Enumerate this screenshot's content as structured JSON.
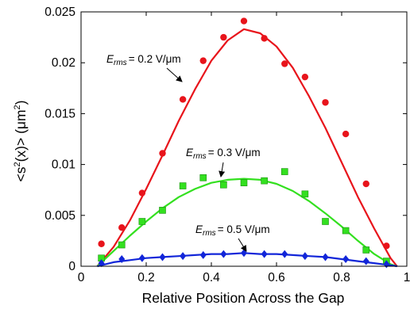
{
  "chart_data": {
    "type": "scatter",
    "xlabel": "Relative Position Across the Gap",
    "ylabel_parts": {
      "pre": "<s",
      "sup1": "2",
      "mid": "(x)> (μm",
      "sup2": "2",
      "post": ")"
    },
    "xlim": [
      0,
      1
    ],
    "ylim": [
      0,
      0.025
    ],
    "xticks": [
      0,
      0.2,
      0.4,
      0.6,
      0.8,
      1
    ],
    "xtick_labels": [
      "0",
      "0.2",
      "0.4",
      "0.6",
      "0.8",
      "1"
    ],
    "yticks": [
      0,
      0.005,
      0.01,
      0.015,
      0.02,
      0.025
    ],
    "ytick_labels": [
      "0",
      "0.005",
      "0.01",
      "0.015",
      "0.02",
      "0.025"
    ],
    "grid": false,
    "legend": "none",
    "series": [
      {
        "annotation": {
          "E": "E",
          "sub": "rms",
          "value": "= 0.2 V/μm"
        },
        "marker": "circle",
        "color": "#e8141b",
        "points": [
          [
            0.0625,
            0.0022
          ],
          [
            0.125,
            0.0038
          ],
          [
            0.1875,
            0.0072
          ],
          [
            0.25,
            0.0111
          ],
          [
            0.3125,
            0.0164
          ],
          [
            0.375,
            0.0202
          ],
          [
            0.4375,
            0.0225
          ],
          [
            0.5,
            0.0241
          ],
          [
            0.5625,
            0.0224
          ],
          [
            0.625,
            0.0199
          ],
          [
            0.6875,
            0.0186
          ],
          [
            0.75,
            0.0161
          ],
          [
            0.8125,
            0.013
          ],
          [
            0.875,
            0.0081
          ],
          [
            0.9375,
            0.002
          ]
        ],
        "fit": [
          [
            0.05,
            0.0
          ],
          [
            0.1,
            0.0019
          ],
          [
            0.15,
            0.0045
          ],
          [
            0.2,
            0.0076
          ],
          [
            0.25,
            0.0109
          ],
          [
            0.3,
            0.0143
          ],
          [
            0.35,
            0.0174
          ],
          [
            0.4,
            0.0202
          ],
          [
            0.45,
            0.0222
          ],
          [
            0.5,
            0.0233
          ],
          [
            0.55,
            0.0229
          ],
          [
            0.6,
            0.0216
          ],
          [
            0.65,
            0.0195
          ],
          [
            0.7,
            0.0167
          ],
          [
            0.75,
            0.0136
          ],
          [
            0.8,
            0.0102
          ],
          [
            0.85,
            0.0068
          ],
          [
            0.9,
            0.0037
          ],
          [
            0.95,
            0.0008
          ],
          [
            0.97,
            0.0
          ]
        ]
      },
      {
        "annotation": {
          "E": "E",
          "sub": "rms",
          "value": "= 0.3 V/μm"
        },
        "marker": "square",
        "color": "#33e01f",
        "points": [
          [
            0.0625,
            0.0008
          ],
          [
            0.125,
            0.0021
          ],
          [
            0.1875,
            0.0044
          ],
          [
            0.25,
            0.0055
          ],
          [
            0.3125,
            0.0079
          ],
          [
            0.375,
            0.0087
          ],
          [
            0.4375,
            0.008
          ],
          [
            0.5,
            0.0082
          ],
          [
            0.5625,
            0.0084
          ],
          [
            0.625,
            0.0093
          ],
          [
            0.6875,
            0.0071
          ],
          [
            0.75,
            0.0044
          ],
          [
            0.8125,
            0.0035
          ],
          [
            0.875,
            0.0016
          ],
          [
            0.9375,
            0.0005
          ]
        ],
        "fit": [
          [
            0.05,
            0.0
          ],
          [
            0.1,
            0.0015
          ],
          [
            0.15,
            0.003
          ],
          [
            0.2,
            0.0044
          ],
          [
            0.25,
            0.0057
          ],
          [
            0.3,
            0.0068
          ],
          [
            0.35,
            0.0076
          ],
          [
            0.4,
            0.0082
          ],
          [
            0.45,
            0.0085
          ],
          [
            0.5,
            0.0086
          ],
          [
            0.55,
            0.0085
          ],
          [
            0.6,
            0.0081
          ],
          [
            0.65,
            0.0074
          ],
          [
            0.7,
            0.0064
          ],
          [
            0.75,
            0.0052
          ],
          [
            0.8,
            0.0039
          ],
          [
            0.85,
            0.0025
          ],
          [
            0.9,
            0.0012
          ],
          [
            0.95,
            0.0002
          ],
          [
            0.97,
            0.0
          ]
        ]
      },
      {
        "annotation": {
          "E": "E",
          "sub": "rms",
          "value": "= 0.5 V/μm"
        },
        "marker": "diamond",
        "color": "#1226d9",
        "points": [
          [
            0.0625,
            0.0003
          ],
          [
            0.125,
            0.0007
          ],
          [
            0.1875,
            0.0008
          ],
          [
            0.25,
            0.0009
          ],
          [
            0.3125,
            0.001
          ],
          [
            0.375,
            0.0011
          ],
          [
            0.4375,
            0.0012
          ],
          [
            0.5,
            0.0013
          ],
          [
            0.5625,
            0.0012
          ],
          [
            0.625,
            0.0012
          ],
          [
            0.6875,
            0.001
          ],
          [
            0.75,
            0.0009
          ],
          [
            0.8125,
            0.0007
          ],
          [
            0.875,
            0.0005
          ],
          [
            0.9375,
            0.0002
          ]
        ],
        "fit": [
          [
            0.05,
            0.0
          ],
          [
            0.1,
            0.0004
          ],
          [
            0.15,
            0.0006
          ],
          [
            0.2,
            0.0008
          ],
          [
            0.25,
            0.0009
          ],
          [
            0.3,
            0.001
          ],
          [
            0.35,
            0.0011
          ],
          [
            0.4,
            0.0012
          ],
          [
            0.45,
            0.0012
          ],
          [
            0.5,
            0.0013
          ],
          [
            0.55,
            0.0012
          ],
          [
            0.6,
            0.0012
          ],
          [
            0.65,
            0.0011
          ],
          [
            0.7,
            0.001
          ],
          [
            0.75,
            0.0009
          ],
          [
            0.8,
            0.0007
          ],
          [
            0.85,
            0.0005
          ],
          [
            0.9,
            0.0003
          ],
          [
            0.95,
            0.0001
          ],
          [
            0.97,
            0.0
          ]
        ]
      }
    ]
  }
}
